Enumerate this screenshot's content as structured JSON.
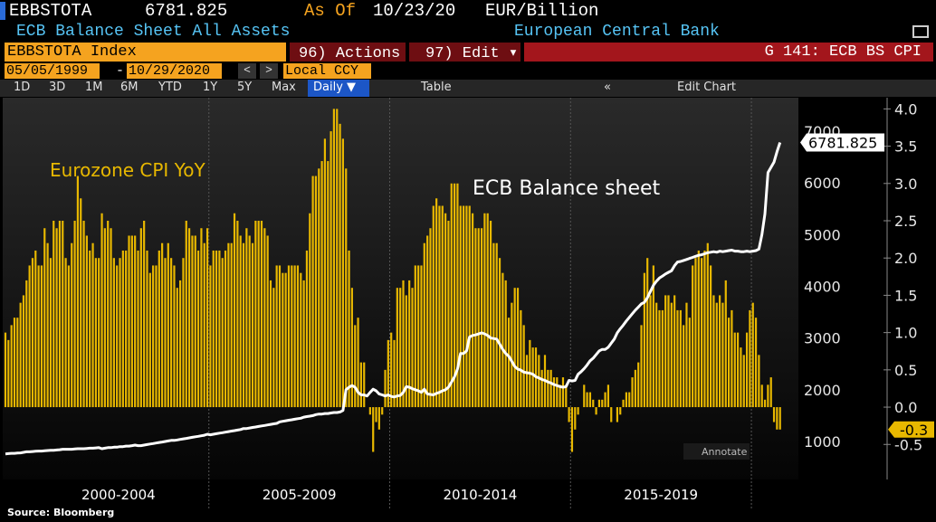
{
  "header": {
    "ticker": "EBBSTOTA",
    "as_of_label": "As Of",
    "as_of_date": "10/23/20",
    "units": "EUR/Billion",
    "description": "ECB Balance Sheet All Assets",
    "source_name": "European Central Bank"
  },
  "toolbar": {
    "security": "EBBSTOTA Index",
    "actions": "96) Actions ▾",
    "edit": "97) Edit ▾",
    "chart_name": "G 141: ECB BS CPI",
    "start_date": "05/05/1999",
    "end_date": "10/29/2020",
    "currency": "Local CCY",
    "periods": [
      "1D",
      "3D",
      "1M",
      "6M",
      "YTD",
      "1Y",
      "5Y",
      "Max"
    ],
    "frequency": "Daily ▼",
    "table": "Table",
    "edit_chart": "Edit Chart",
    "annotate": "Annotate"
  },
  "chart_data": {
    "type": "combo",
    "source": "Source: Bloomberg",
    "x": [
      1999.375,
      1999.458,
      1999.542,
      1999.625,
      1999.708,
      1999.792,
      1999.875,
      1999.958,
      2000.042,
      2000.125,
      2000.208,
      2000.292,
      2000.375,
      2000.458,
      2000.542,
      2000.625,
      2000.708,
      2000.792,
      2000.875,
      2000.958,
      2001.042,
      2001.125,
      2001.208,
      2001.292,
      2001.375,
      2001.458,
      2001.542,
      2001.625,
      2001.708,
      2001.792,
      2001.875,
      2001.958,
      2002.042,
      2002.125,
      2002.208,
      2002.292,
      2002.375,
      2002.458,
      2002.542,
      2002.625,
      2002.708,
      2002.792,
      2002.875,
      2002.958,
      2003.042,
      2003.125,
      2003.208,
      2003.292,
      2003.375,
      2003.458,
      2003.542,
      2003.625,
      2003.708,
      2003.792,
      2003.875,
      2003.958,
      2004.042,
      2004.125,
      2004.208,
      2004.292,
      2004.375,
      2004.458,
      2004.542,
      2004.625,
      2004.708,
      2004.792,
      2004.875,
      2004.958,
      2005.042,
      2005.125,
      2005.208,
      2005.292,
      2005.375,
      2005.458,
      2005.542,
      2005.625,
      2005.708,
      2005.792,
      2005.875,
      2005.958,
      2006.042,
      2006.125,
      2006.208,
      2006.292,
      2006.375,
      2006.458,
      2006.542,
      2006.625,
      2006.708,
      2006.792,
      2006.875,
      2006.958,
      2007.042,
      2007.125,
      2007.208,
      2007.292,
      2007.375,
      2007.458,
      2007.542,
      2007.625,
      2007.708,
      2007.792,
      2007.875,
      2007.958,
      2008.042,
      2008.125,
      2008.208,
      2008.292,
      2008.375,
      2008.458,
      2008.542,
      2008.625,
      2008.708,
      2008.792,
      2008.875,
      2008.958,
      2009.042,
      2009.125,
      2009.208,
      2009.292,
      2009.375,
      2009.458,
      2009.542,
      2009.625,
      2009.708,
      2009.792,
      2009.875,
      2009.958,
      2010.042,
      2010.125,
      2010.208,
      2010.292,
      2010.375,
      2010.458,
      2010.542,
      2010.625,
      2010.708,
      2010.792,
      2010.875,
      2010.958,
      2011.042,
      2011.125,
      2011.208,
      2011.292,
      2011.375,
      2011.458,
      2011.542,
      2011.625,
      2011.708,
      2011.792,
      2011.875,
      2011.958,
      2012.042,
      2012.125,
      2012.208,
      2012.292,
      2012.375,
      2012.458,
      2012.542,
      2012.625,
      2012.708,
      2012.792,
      2012.875,
      2012.958,
      2013.042,
      2013.125,
      2013.208,
      2013.292,
      2013.375,
      2013.458,
      2013.542,
      2013.625,
      2013.708,
      2013.792,
      2013.875,
      2013.958,
      2014.042,
      2014.125,
      2014.208,
      2014.292,
      2014.375,
      2014.458,
      2014.542,
      2014.625,
      2014.708,
      2014.792,
      2014.875,
      2014.958,
      2015.042,
      2015.125,
      2015.208,
      2015.292,
      2015.375,
      2015.458,
      2015.542,
      2015.625,
      2015.708,
      2015.792,
      2015.875,
      2015.958,
      2016.042,
      2016.125,
      2016.208,
      2016.292,
      2016.375,
      2016.458,
      2016.542,
      2016.625,
      2016.708,
      2016.792,
      2016.875,
      2016.958,
      2017.042,
      2017.125,
      2017.208,
      2017.292,
      2017.375,
      2017.458,
      2017.542,
      2017.625,
      2017.708,
      2017.792,
      2017.875,
      2017.958,
      2018.042,
      2018.125,
      2018.208,
      2018.292,
      2018.375,
      2018.458,
      2018.542,
      2018.625,
      2018.708,
      2018.792,
      2018.875,
      2018.958,
      2019.042,
      2019.125,
      2019.208,
      2019.292,
      2019.375,
      2019.458,
      2019.542,
      2019.625,
      2019.708,
      2019.792,
      2019.875,
      2019.958,
      2020.042,
      2020.125,
      2020.208,
      2020.292,
      2020.375,
      2020.458,
      2020.542,
      2020.625,
      2020.708,
      2020.792
    ],
    "series": [
      {
        "name": "Eurozone CPI YoY",
        "type": "bar",
        "axis": "y2",
        "color": "#e8b800",
        "values": [
          1.0,
          0.9,
          1.1,
          1.2,
          1.2,
          1.4,
          1.5,
          1.7,
          1.9,
          2.0,
          2.1,
          1.9,
          1.9,
          2.4,
          2.2,
          2.0,
          2.5,
          2.4,
          2.5,
          2.5,
          2.0,
          1.9,
          2.2,
          2.5,
          3.1,
          2.8,
          2.5,
          2.3,
          2.1,
          2.2,
          2.0,
          2.0,
          2.6,
          2.4,
          2.5,
          2.4,
          2.0,
          1.9,
          2.0,
          2.1,
          2.1,
          2.3,
          2.3,
          2.3,
          2.1,
          2.4,
          2.5,
          2.1,
          1.8,
          1.9,
          1.9,
          2.1,
          2.2,
          2.0,
          2.2,
          2.0,
          1.9,
          1.6,
          1.7,
          2.0,
          2.5,
          2.4,
          2.3,
          2.3,
          2.1,
          2.4,
          2.2,
          2.4,
          1.9,
          2.1,
          2.1,
          2.1,
          2.0,
          2.1,
          2.2,
          2.2,
          2.6,
          2.5,
          2.3,
          2.2,
          2.4,
          2.3,
          2.2,
          2.5,
          2.5,
          2.5,
          2.4,
          2.3,
          1.7,
          1.6,
          1.9,
          1.9,
          1.8,
          1.8,
          1.9,
          1.9,
          1.9,
          1.9,
          1.8,
          1.7,
          2.1,
          2.6,
          3.1,
          3.1,
          3.2,
          3.3,
          3.6,
          3.3,
          3.7,
          4.0,
          4.0,
          3.8,
          3.6,
          3.2,
          2.1,
          1.6,
          1.1,
          1.2,
          0.6,
          0.6,
          0.0,
          -0.1,
          -0.6,
          -0.2,
          -0.3,
          -0.1,
          0.5,
          0.9,
          1.0,
          0.9,
          1.6,
          1.6,
          1.7,
          1.5,
          1.7,
          1.6,
          1.9,
          1.9,
          1.9,
          2.2,
          2.3,
          2.4,
          2.7,
          2.8,
          2.7,
          2.7,
          2.6,
          2.5,
          3.0,
          3.0,
          3.0,
          2.7,
          2.7,
          2.7,
          2.7,
          2.6,
          2.4,
          2.4,
          2.4,
          2.6,
          2.6,
          2.5,
          2.2,
          2.2,
          2.0,
          1.8,
          1.7,
          1.2,
          1.4,
          1.6,
          1.6,
          1.3,
          1.1,
          0.7,
          0.9,
          0.8,
          0.8,
          0.7,
          0.5,
          0.7,
          0.5,
          0.5,
          0.4,
          0.4,
          0.3,
          0.4,
          0.3,
          -0.2,
          -0.6,
          -0.3,
          -0.1,
          0.0,
          0.3,
          0.2,
          0.2,
          0.1,
          -0.1,
          0.1,
          0.1,
          0.2,
          0.3,
          -0.2,
          0.0,
          -0.2,
          -0.1,
          0.1,
          0.2,
          0.2,
          0.4,
          0.5,
          0.6,
          1.1,
          1.8,
          2.0,
          1.5,
          1.9,
          1.4,
          1.3,
          1.3,
          1.5,
          1.5,
          1.4,
          1.5,
          1.3,
          1.3,
          1.1,
          1.4,
          1.2,
          1.9,
          2.0,
          2.1,
          2.0,
          2.1,
          2.2,
          1.9,
          1.5,
          1.4,
          1.5,
          1.4,
          1.7,
          1.2,
          1.3,
          1.0,
          1.0,
          0.8,
          0.7,
          1.0,
          1.3,
          1.4,
          1.2,
          0.7,
          0.3,
          0.1,
          0.3,
          0.4,
          -0.2,
          -0.3,
          -0.3
        ]
      },
      {
        "name": "ECB Balance sheet",
        "type": "line",
        "axis": "y",
        "color": "#ffffff",
        "values": [
          760,
          765,
          770,
          770,
          775,
          780,
          790,
          800,
          800,
          805,
          810,
          815,
          815,
          820,
          825,
          830,
          830,
          835,
          840,
          850,
          850,
          850,
          850,
          855,
          860,
          860,
          860,
          865,
          870,
          870,
          875,
          880,
          860,
          870,
          880,
          880,
          890,
          890,
          900,
          900,
          910,
          910,
          920,
          930,
          920,
          920,
          930,
          940,
          950,
          960,
          970,
          980,
          990,
          1000,
          1010,
          1020,
          1020,
          1030,
          1040,
          1050,
          1060,
          1070,
          1080,
          1090,
          1100,
          1110,
          1120,
          1140,
          1130,
          1140,
          1150,
          1160,
          1170,
          1180,
          1190,
          1200,
          1210,
          1220,
          1230,
          1250,
          1250,
          1260,
          1270,
          1280,
          1290,
          1300,
          1310,
          1320,
          1330,
          1340,
          1350,
          1380,
          1390,
          1400,
          1410,
          1420,
          1430,
          1440,
          1450,
          1470,
          1480,
          1490,
          1500,
          1520,
          1530,
          1530,
          1540,
          1540,
          1550,
          1560,
          1560,
          1570,
          1600,
          2000,
          2050,
          2080,
          2050,
          1950,
          1900,
          1900,
          1880,
          1950,
          2010,
          1980,
          1920,
          1900,
          1880,
          1900,
          1870,
          1860,
          1880,
          1890,
          1950,
          2060,
          2050,
          2020,
          2000,
          1980,
          1950,
          2010,
          1920,
          1910,
          1900,
          1930,
          1950,
          1980,
          2000,
          2050,
          2150,
          2250,
          2400,
          2700,
          2700,
          2750,
          3020,
          3050,
          3060,
          3080,
          3100,
          3080,
          3050,
          3000,
          2990,
          2980,
          2880,
          2780,
          2700,
          2650,
          2550,
          2450,
          2400,
          2380,
          2340,
          2330,
          2320,
          2300,
          2250,
          2230,
          2200,
          2180,
          2150,
          2130,
          2100,
          2080,
          2060,
          2050,
          2060,
          2180,
          2170,
          2180,
          2300,
          2350,
          2410,
          2480,
          2560,
          2610,
          2680,
          2750,
          2780,
          2780,
          2820,
          2900,
          2980,
          3100,
          3180,
          3250,
          3330,
          3400,
          3470,
          3540,
          3600,
          3660,
          3690,
          3780,
          3900,
          4020,
          4100,
          4160,
          4200,
          4240,
          4270,
          4300,
          4400,
          4470,
          4480,
          4500,
          4520,
          4540,
          4560,
          4580,
          4600,
          4610,
          4630,
          4650,
          4660,
          4670,
          4660,
          4680,
          4670,
          4680,
          4690,
          4700,
          4680,
          4680,
          4670,
          4670,
          4680,
          4670,
          4680,
          4690,
          4720,
          5000,
          5400,
          6200,
          6300,
          6400,
          6600,
          6781.825
        ]
      }
    ],
    "xlim": [
      1999.3,
      2021.3
    ],
    "xticks": [
      {
        "value": 2002.5,
        "label": "2000-2004"
      },
      {
        "value": 2007.5,
        "label": "2005-2009"
      },
      {
        "value": 2012.5,
        "label": "2010-2014"
      },
      {
        "value": 2017.5,
        "label": "2015-2019"
      }
    ],
    "ylim": [
      265,
      7647
    ],
    "yticks": [
      1000,
      2000,
      3000,
      4000,
      5000,
      6000,
      7000
    ],
    "y2lim": [
      -0.97,
      4.15
    ],
    "y2ticks": [
      {
        "value": 4,
        "label": "4.0"
      },
      3.5,
      {
        "value": 3,
        "label": "3.0"
      },
      2.5,
      {
        "value": 2,
        "label": "2.0"
      },
      1.5,
      {
        "value": 1,
        "label": "1.0"
      },
      0.5,
      {
        "value": 0,
        "label": "0.0"
      },
      -0.5
    ],
    "grid": false
  }
}
